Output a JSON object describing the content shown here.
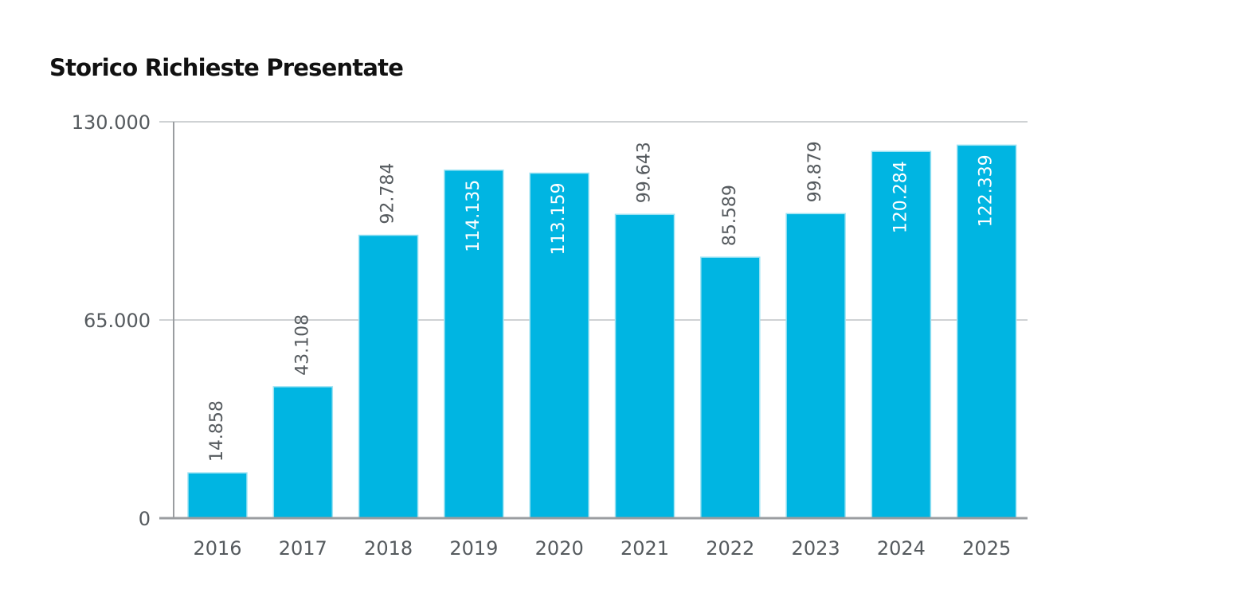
{
  "chart_data": {
    "type": "bar",
    "title": "Storico Richieste Presentate",
    "categories": [
      "2016",
      "2017",
      "2018",
      "2019",
      "2020",
      "2021",
      "2022",
      "2023",
      "2024",
      "2025"
    ],
    "values": [
      14858,
      43108,
      92784,
      114135,
      113159,
      99643,
      85589,
      99879,
      120284,
      122339
    ],
    "value_labels": [
      "14.858",
      "43.108",
      "92.784",
      "114.135",
      "113.159",
      "99.643",
      "85.589",
      "99.879",
      "120.284",
      "122.339"
    ],
    "ylim": [
      0,
      130000
    ],
    "yticks": [
      0,
      65000,
      130000
    ],
    "ytick_labels": [
      "0",
      "65.000",
      "130.000"
    ],
    "xlabel": "",
    "ylabel": "",
    "grid": true,
    "legend": "none",
    "colors": {
      "bar": "#00b5e2",
      "bar_edge": "#9fe3f3",
      "grid": "#cfd2d4",
      "axis": "#9a9da0",
      "label_outside": "#555a5e",
      "label_inside": "#ffffff"
    }
  }
}
